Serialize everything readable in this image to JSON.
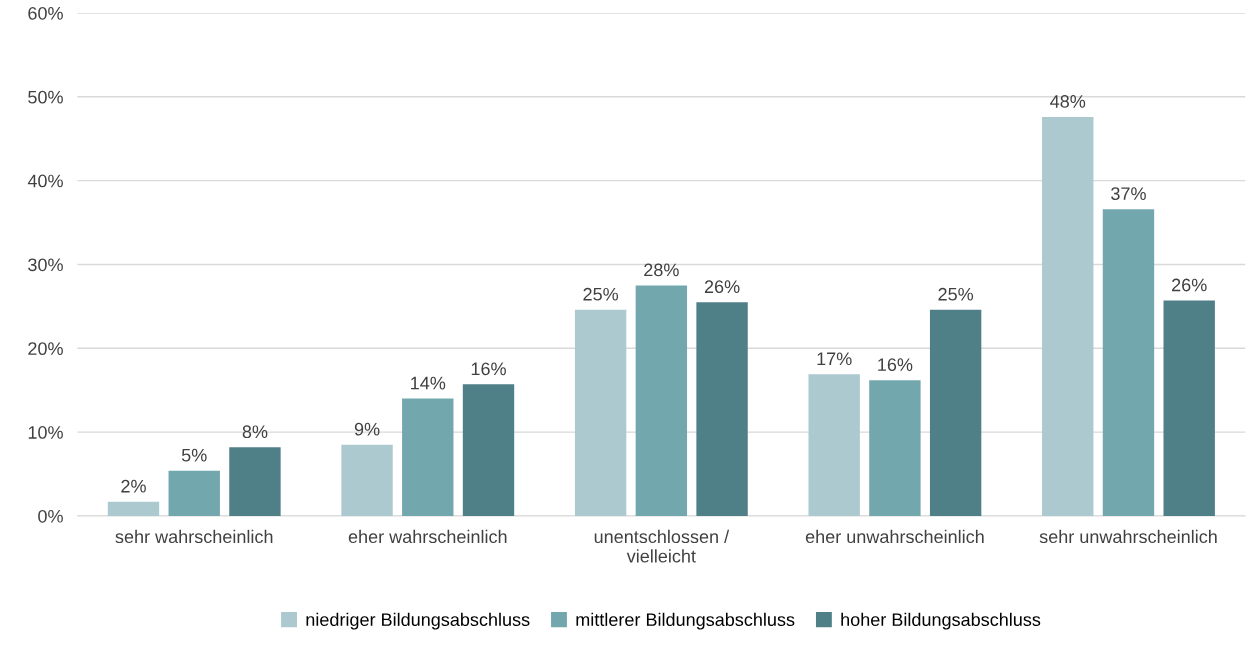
{
  "chart_data": {
    "type": "bar",
    "categories": [
      "sehr wahrscheinlich",
      "eher wahrscheinlich",
      "unentschlossen /\nvielleicht",
      "eher unwahrscheinlich",
      "sehr unwahrscheinlich"
    ],
    "series": [
      {
        "name": "niedriger Bildungsabschluss",
        "color": "#abc9ce",
        "values": [
          1.7,
          8.5,
          24.6,
          16.9,
          47.6
        ],
        "value_labels": [
          "2%",
          "9%",
          "25%",
          "17%",
          "48%"
        ]
      },
      {
        "name": "mittlerer Bildungsabschluss",
        "color": "#72a7ae",
        "values": [
          5.4,
          14.0,
          27.5,
          16.2,
          36.6
        ],
        "value_labels": [
          "5%",
          "14%",
          "28%",
          "16%",
          "37%"
        ]
      },
      {
        "name": "hoher Bildungsabschluss",
        "color": "#4f7f87",
        "values": [
          8.2,
          15.7,
          25.5,
          24.6,
          25.7
        ],
        "value_labels": [
          "8%",
          "16%",
          "26%",
          "25%",
          "26%"
        ]
      }
    ],
    "ylim": [
      0,
      60
    ],
    "yticks": [
      {
        "value": 0,
        "label": "0%"
      },
      {
        "value": 10,
        "label": "10%"
      },
      {
        "value": 20,
        "label": "20%"
      },
      {
        "value": 30,
        "label": "30%"
      },
      {
        "value": 40,
        "label": "40%"
      },
      {
        "value": 50,
        "label": "50%"
      },
      {
        "value": 60,
        "label": "60%"
      }
    ],
    "grid": "y",
    "legend": "bottom"
  }
}
